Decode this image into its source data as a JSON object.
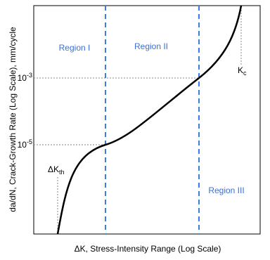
{
  "title": null,
  "y_axis_label": "da/dN, Crack-Growth Rate (Log Scale), mm/cycle",
  "x_axis_label": "ΔK, Stress-Intensity Range (Log Scale)",
  "regions": [
    "Region I",
    "Region II",
    "Region III"
  ],
  "y_ticks": [
    {
      "base": "10",
      "exponent": "-3"
    },
    {
      "base": "10",
      "exponent": "-5"
    }
  ],
  "annotations": {
    "threshold": {
      "main": "ΔK",
      "sub": "th"
    },
    "critical": {
      "main": "K",
      "sub": "c"
    }
  }
}
